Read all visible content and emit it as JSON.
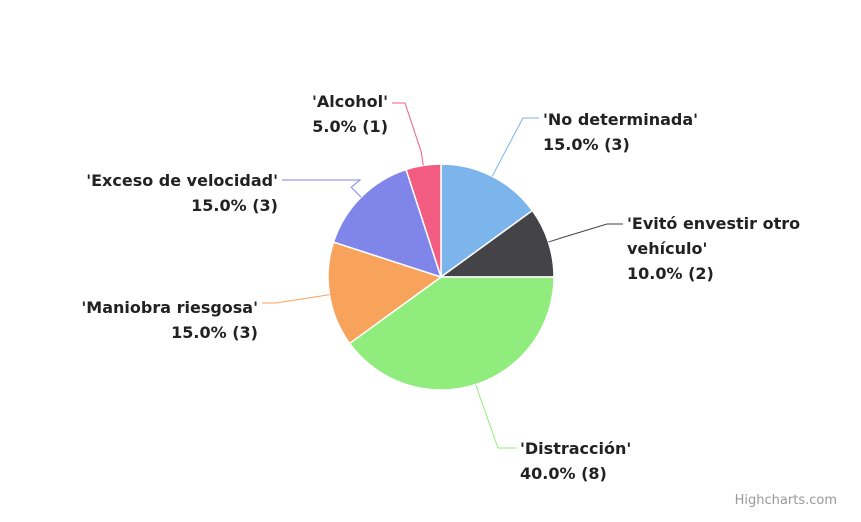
{
  "chart_data": {
    "type": "pie",
    "categories": [
      "'No determinada'",
      "'Evitó envestir otro vehículo'",
      "'Distracción'",
      "'Maniobra riesgosa'",
      "'Exceso de velocidad'",
      "'Alcohol'"
    ],
    "values": [
      15,
      10,
      40,
      15,
      15,
      5
    ],
    "value_labels": [
      "15.0% (3)",
      "10.0% (2)",
      "40.0% (8)",
      "15.0% (3)",
      "15.0% (3)",
      "5.0% (1)"
    ],
    "colors": [
      "#7cb5ec",
      "#434348",
      "#90ed7d",
      "#f7a35c",
      "#8085e9",
      "#f15c80"
    ]
  },
  "credits": "Highcharts.com"
}
